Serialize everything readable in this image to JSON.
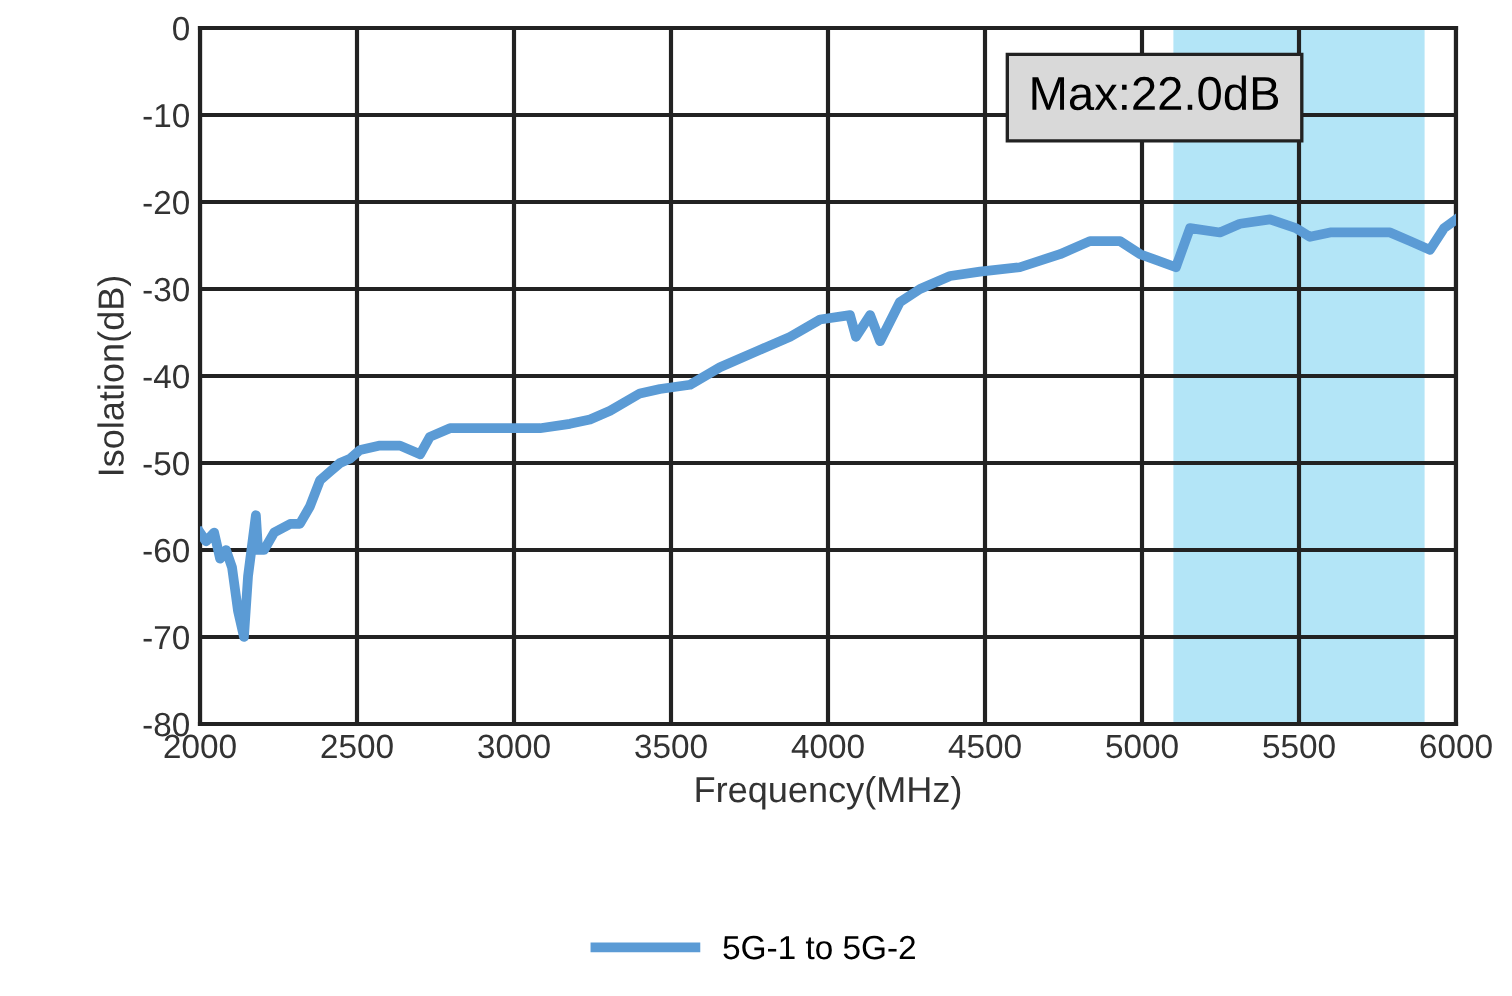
{
  "chart_data": {
    "type": "line",
    "xlabel": "Frequency(MHz)",
    "ylabel": "Isolation(dB)",
    "xlim": [
      2000,
      6000
    ],
    "xticks": [
      2000,
      2500,
      3000,
      3500,
      4000,
      4500,
      5000,
      5500,
      6000
    ],
    "ylim": [
      -80,
      0
    ],
    "yticks": [
      -80,
      -70,
      -60,
      -50,
      -40,
      -30,
      -20,
      -10,
      0
    ],
    "grid": true,
    "legend": "bottom",
    "annotations": [
      "Max:22.0dB"
    ],
    "bands": [
      {
        "axis": "x",
        "from": 5100,
        "to": 5900,
        "color": "#b3e5f7"
      }
    ],
    "series": [
      {
        "name": "5G-1 to 5G-2",
        "color": "#5b9bd5",
        "x": [
          2000,
          2019,
          2045,
          2064,
          2083,
          2102,
          2121,
          2140,
          2153,
          2178,
          2185,
          2204,
          2236,
          2287,
          2318,
          2350,
          2382,
          2414,
          2446,
          2478,
          2510,
          2573,
          2637,
          2701,
          2732,
          2796,
          2892,
          2987,
          3083,
          3178,
          3242,
          3306,
          3401,
          3465,
          3561,
          3656,
          3783,
          3879,
          3975,
          4070,
          4089,
          4134,
          4166,
          4229,
          4293,
          4389,
          4484,
          4611,
          4739,
          4834,
          4930,
          4994,
          5108,
          5153,
          5248,
          5312,
          5408,
          5490,
          5535,
          5599,
          5694,
          5790,
          5854,
          5917,
          5962,
          6000
        ],
        "values": [
          -58,
          -59,
          -58,
          -61,
          -60,
          -62,
          -67,
          -70,
          -63,
          -56,
          -60,
          -60,
          -58,
          -57,
          -57,
          -55,
          -52,
          -51,
          -50,
          -49.5,
          -48.5,
          -48,
          -48,
          -49,
          -47,
          -46,
          -46,
          -46,
          -46,
          -45.5,
          -45,
          -44,
          -42,
          -41.5,
          -41,
          -39,
          -37,
          -35.5,
          -33.5,
          -33,
          -35.5,
          -33,
          -36,
          -31.5,
          -30,
          -28.5,
          -28,
          -27.5,
          -26,
          -24.5,
          -24.5,
          -26,
          -27.5,
          -23,
          -23.5,
          -22.5,
          -22,
          -23,
          -24,
          -23.5,
          -23.5,
          -23.5,
          -24.5,
          -25.5,
          -23,
          -22
        ]
      }
    ]
  }
}
